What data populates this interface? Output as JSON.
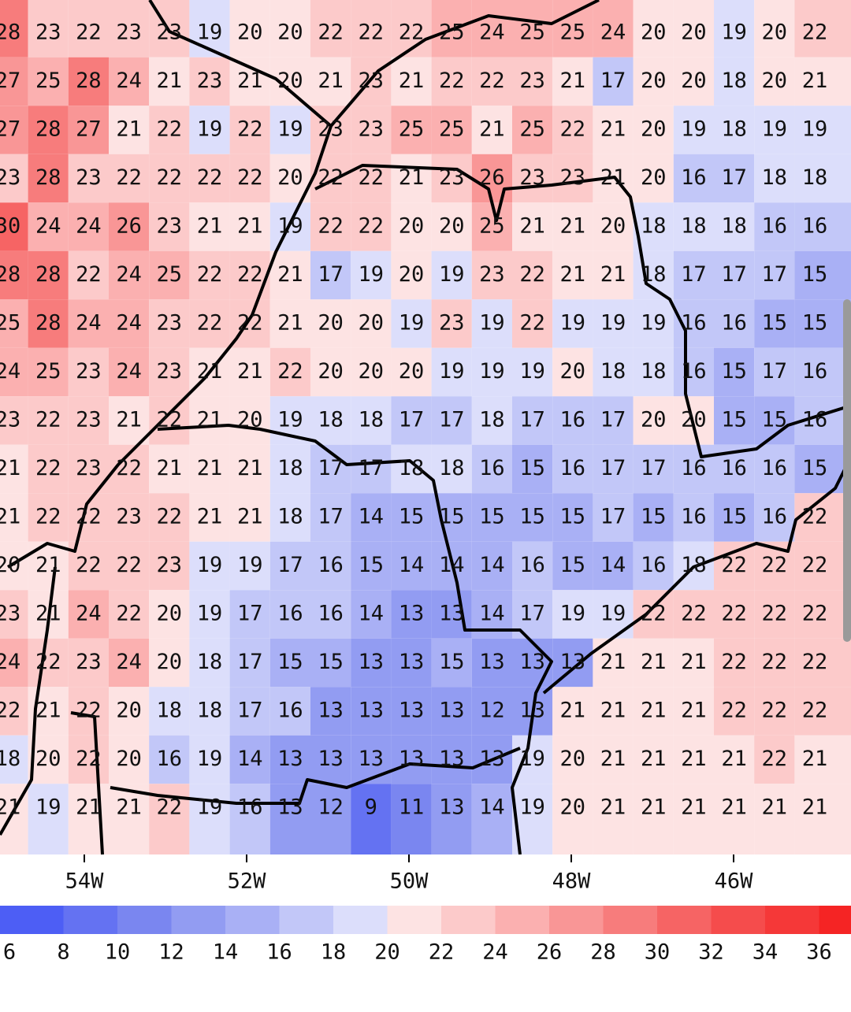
{
  "grid": {
    "rows": [
      [
        28,
        23,
        22,
        23,
        23,
        19,
        20,
        20,
        22,
        22,
        22,
        25,
        24,
        25,
        25,
        24,
        20,
        20,
        19,
        20,
        22
      ],
      [
        27,
        25,
        28,
        24,
        21,
        23,
        21,
        20,
        21,
        23,
        21,
        22,
        22,
        23,
        21,
        17,
        20,
        20,
        18,
        20,
        21
      ],
      [
        27,
        28,
        27,
        21,
        22,
        19,
        22,
        19,
        23,
        23,
        25,
        25,
        21,
        25,
        22,
        21,
        20,
        19,
        18,
        19,
        19
      ],
      [
        23,
        28,
        23,
        22,
        22,
        22,
        22,
        20,
        22,
        22,
        21,
        23,
        26,
        23,
        23,
        21,
        20,
        16,
        17,
        18,
        18
      ],
      [
        30,
        24,
        24,
        26,
        23,
        21,
        21,
        19,
        22,
        22,
        20,
        20,
        25,
        21,
        21,
        20,
        18,
        18,
        18,
        16,
        16
      ],
      [
        28,
        28,
        22,
        24,
        25,
        22,
        22,
        21,
        17,
        19,
        20,
        19,
        23,
        22,
        21,
        21,
        18,
        17,
        17,
        17,
        15
      ],
      [
        25,
        28,
        24,
        24,
        23,
        22,
        22,
        21,
        20,
        20,
        19,
        23,
        19,
        22,
        19,
        19,
        19,
        16,
        16,
        15,
        15
      ],
      [
        24,
        25,
        23,
        24,
        23,
        21,
        21,
        22,
        20,
        20,
        20,
        19,
        19,
        19,
        20,
        18,
        18,
        16,
        15,
        17,
        16
      ],
      [
        23,
        22,
        23,
        21,
        22,
        21,
        20,
        19,
        18,
        18,
        17,
        17,
        18,
        17,
        16,
        17,
        20,
        20,
        15,
        15,
        16
      ],
      [
        21,
        22,
        23,
        22,
        21,
        21,
        21,
        18,
        17,
        17,
        18,
        18,
        16,
        15,
        16,
        17,
        17,
        16,
        16,
        16,
        15
      ],
      [
        21,
        22,
        22,
        23,
        22,
        21,
        21,
        18,
        17,
        14,
        15,
        15,
        15,
        15,
        15,
        17,
        15,
        16,
        15,
        16,
        22
      ],
      [
        20,
        21,
        22,
        22,
        23,
        19,
        19,
        17,
        16,
        15,
        14,
        14,
        14,
        16,
        15,
        14,
        16,
        18,
        22,
        22,
        22
      ],
      [
        23,
        21,
        24,
        22,
        20,
        19,
        17,
        16,
        16,
        14,
        13,
        13,
        14,
        17,
        19,
        19,
        22,
        22,
        22,
        22,
        22
      ],
      [
        24,
        22,
        23,
        24,
        20,
        18,
        17,
        15,
        15,
        13,
        13,
        15,
        13,
        13,
        13,
        21,
        21,
        21,
        22,
        22,
        22
      ],
      [
        22,
        21,
        22,
        20,
        18,
        18,
        17,
        16,
        13,
        13,
        13,
        13,
        12,
        13,
        21,
        21,
        21,
        21,
        22,
        22,
        22
      ],
      [
        18,
        20,
        22,
        20,
        16,
        19,
        14,
        13,
        13,
        13,
        13,
        13,
        13,
        19,
        20,
        21,
        21,
        21,
        21,
        22,
        21
      ],
      [
        21,
        19,
        21,
        21,
        22,
        19,
        16,
        13,
        12,
        9,
        11,
        13,
        14,
        19,
        20,
        21,
        21,
        21,
        21,
        21,
        21
      ]
    ]
  },
  "longitude_ticks": [
    {
      "value": -54,
      "label": "54W"
    },
    {
      "value": -52,
      "label": "52W"
    },
    {
      "value": -50,
      "label": "50W"
    },
    {
      "value": -48,
      "label": "48W"
    },
    {
      "value": -46,
      "label": "46W"
    }
  ],
  "colorbar": {
    "levels": [
      6,
      8,
      10,
      12,
      14,
      16,
      18,
      20,
      22,
      24,
      26,
      28,
      30,
      32,
      34,
      36
    ],
    "colors": [
      "#4d5ef5",
      "#6472f2",
      "#7a86f0",
      "#929cf2",
      "#a9b0f5",
      "#c2c7f8",
      "#dcdefb",
      "#fde3e3",
      "#fccaca",
      "#fbb0b0",
      "#f99696",
      "#f77c7c",
      "#f66464",
      "#f54c4c",
      "#f53838",
      "#f52424"
    ]
  }
}
